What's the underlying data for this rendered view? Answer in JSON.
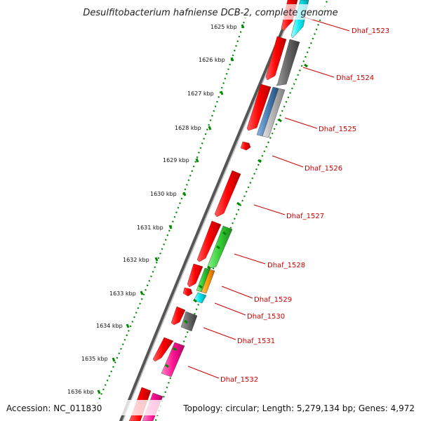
{
  "title": "Desulfitobacterium hafniense DCB-2, complete genome",
  "footer": {
    "accession": "Accession: NC_011830",
    "topology": "Topology: circular; Length: 5,279,134 bp; Genes: 4,972"
  },
  "kbp_labels": [
    "1625 kbp",
    "1626 kbp",
    "1627 kbp",
    "1628 kbp",
    "1629 kbp",
    "1630 kbp",
    "1631 kbp",
    "1632 kbp",
    "1633 kbp",
    "1634 kbp",
    "1635 kbp",
    "1636 kbp"
  ],
  "gene_labels": [
    "Dhaf_1523",
    "Dhaf_1524",
    "Dhaf_1525",
    "Dhaf_1526",
    "Dhaf_1527",
    "Dhaf_1528",
    "Dhaf_1529",
    "Dhaf_1530",
    "Dhaf_1531",
    "Dhaf_1532"
  ],
  "colors": {
    "cds": "#ff0000",
    "cog_gray": "#666666",
    "cog_lightgray": "#b0b0b0",
    "cog_blue": "#4a7fb8",
    "cog_green": "#33cc33",
    "cog_orange": "#ff9900",
    "cog_cyan": "#00e5ee",
    "cog_magenta": "#ff1493",
    "label": "#cc0000",
    "ticks": "#008800",
    "backbone": "#808080"
  }
}
